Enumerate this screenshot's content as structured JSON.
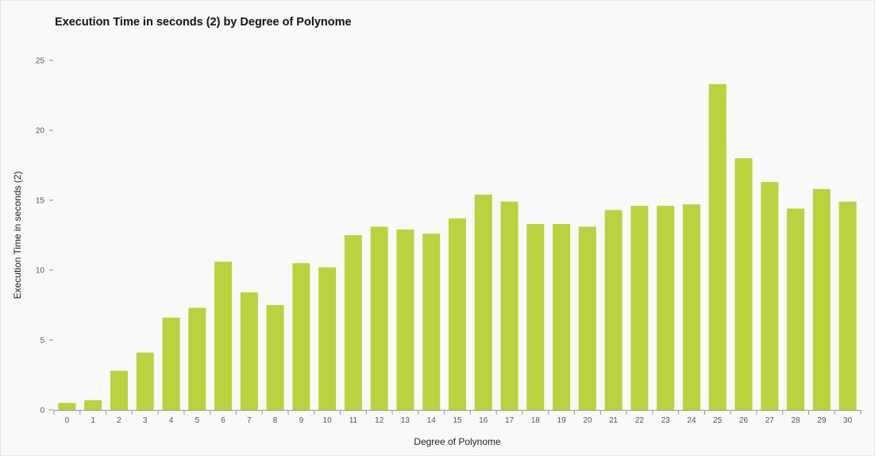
{
  "chart_data": {
    "type": "bar",
    "title": "Execution Time in seconds (2) by Degree of Polynome",
    "xlabel": "Degree of Polynome",
    "ylabel": "Execution Time in seconds (2)",
    "ylim": [
      0,
      25
    ],
    "yticks": [
      "0",
      "5",
      "10",
      "15",
      "20",
      "25"
    ],
    "grid": false,
    "categories": [
      "0",
      "1",
      "2",
      "3",
      "4",
      "5",
      "6",
      "7",
      "8",
      "9",
      "10",
      "11",
      "12",
      "13",
      "14",
      "15",
      "16",
      "17",
      "18",
      "19",
      "20",
      "21",
      "22",
      "23",
      "24",
      "25",
      "26",
      "27",
      "28",
      "29",
      "30"
    ],
    "values": [
      0.5,
      0.7,
      2.8,
      4.1,
      6.6,
      7.3,
      10.6,
      8.4,
      7.5,
      10.5,
      10.2,
      12.5,
      13.1,
      12.9,
      12.6,
      13.7,
      15.4,
      14.9,
      13.3,
      13.3,
      13.1,
      14.3,
      14.6,
      14.6,
      14.7,
      23.3,
      18.0,
      16.3,
      14.4,
      15.8,
      14.9
    ],
    "color": "#bcd13e"
  }
}
